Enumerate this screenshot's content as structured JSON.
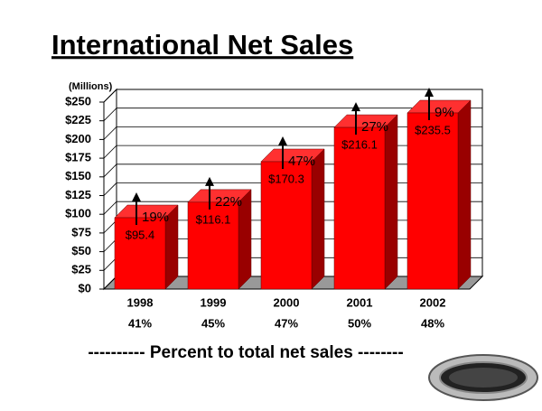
{
  "chart_data": {
    "type": "bar3d",
    "title": "International Net Sales",
    "y_axis_label": "(Millions)",
    "categories": [
      "1998",
      "1999",
      "2000",
      "2001",
      "2002"
    ],
    "values": [
      95.4,
      116.1,
      170.3,
      216.1,
      235.5
    ],
    "value_labels": [
      "$95.4",
      "$116.1",
      "$170.3",
      "$216.1",
      "$235.5"
    ],
    "color": "#ff0000",
    "ylim": [
      0,
      250
    ],
    "yticks": [
      {
        "value": 0,
        "label": "$0"
      },
      {
        "value": 25,
        "label": "$25"
      },
      {
        "value": 50,
        "label": "$50"
      },
      {
        "value": 75,
        "label": "$75"
      },
      {
        "value": 100,
        "label": "$100"
      },
      {
        "value": 125,
        "label": "$125"
      },
      {
        "value": 150,
        "label": "$150"
      },
      {
        "value": 175,
        "label": "$175"
      },
      {
        "value": 200,
        "label": "$200"
      },
      {
        "value": 225,
        "label": "$225"
      },
      {
        "value": 250,
        "label": "$250"
      }
    ],
    "grid": true,
    "growth_labels": [
      "19%",
      "22%",
      "47%",
      "27%",
      "9%"
    ],
    "share_labels": [
      "41%",
      "45%",
      "47%",
      "50%",
      "48%"
    ],
    "footer": "---------- Percent to total net sales --------"
  }
}
